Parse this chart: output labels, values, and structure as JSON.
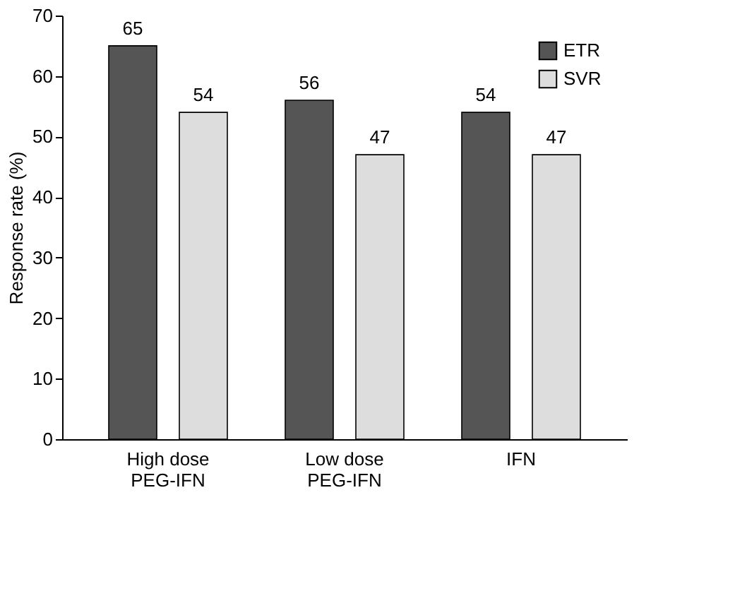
{
  "chart_data": {
    "type": "bar",
    "ylabel": "Response rate (%)",
    "categories": [
      "High dose\nPEG-IFN",
      "Low dose\nPEG-IFN",
      "IFN"
    ],
    "series": [
      {
        "name": "ETR",
        "color": "#555555",
        "values": [
          65,
          56,
          54
        ]
      },
      {
        "name": "SVR",
        "color": "#dddddd",
        "values": [
          54,
          47,
          47
        ]
      }
    ],
    "ylim": [
      0,
      70
    ],
    "yticks": [
      0,
      10,
      20,
      30,
      40,
      50,
      60,
      70
    ],
    "grid": false,
    "legend": "top right",
    "data_labels": true
  }
}
